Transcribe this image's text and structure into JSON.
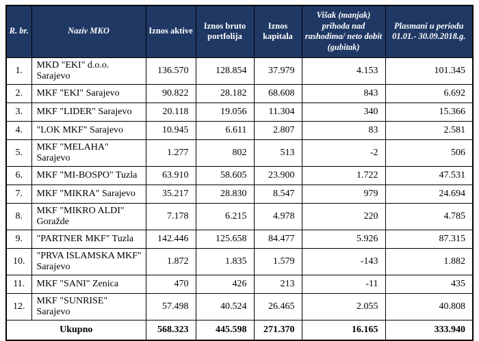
{
  "colors": {
    "header_background": "#1F3864",
    "header_text": "#FFFFFF",
    "body_text": "#000000",
    "border": "#000000"
  },
  "table": {
    "headers": [
      "R. br.",
      "Naziv MKO",
      "Iznos aktive",
      "Iznos bruto portfolija",
      "Iznos kapitala",
      "Višak (manjak) prihoda nad rashodima/ neto dobit (gubitak)",
      "Plasmani u periodu 01.01.- 30.09.2018.g."
    ],
    "rows": [
      {
        "num": "1.",
        "name": "MKD \"EKI\" d.o.o. Sarajevo",
        "aktiva": "136.570",
        "bruto": "128.854",
        "kapital": "37.979",
        "visak": "4.153",
        "plasmani": "101.345"
      },
      {
        "num": "2.",
        "name": "MKF \"EKI\" Sarajevo",
        "aktiva": "90.822",
        "bruto": "28.182",
        "kapital": "68.608",
        "visak": "843",
        "plasmani": "6.692"
      },
      {
        "num": "3.",
        "name": "MKF \"LIDER\" Sarajevo",
        "aktiva": "20.118",
        "bruto": "19.056",
        "kapital": "11.304",
        "visak": "340",
        "plasmani": "15.366"
      },
      {
        "num": "4.",
        "name": "\"LOK MKF\" Sarajevo",
        "aktiva": "10.945",
        "bruto": "6.611",
        "kapital": "2.807",
        "visak": "83",
        "plasmani": "2.581"
      },
      {
        "num": "5.",
        "name": "MKF \"MELAHA\" Sarajevo",
        "aktiva": "1.277",
        "bruto": "802",
        "kapital": "513",
        "visak": "-2",
        "plasmani": "506"
      },
      {
        "num": "6.",
        "name": "MKF \"MI-BOSPO\" Tuzla",
        "aktiva": "63.910",
        "bruto": "58.605",
        "kapital": "23.900",
        "visak": "1.722",
        "plasmani": "47.531"
      },
      {
        "num": "7.",
        "name": "MKF \"MIKRA\" Sarajevo",
        "aktiva": "35.217",
        "bruto": "28.830",
        "kapital": "8.547",
        "visak": "979",
        "plasmani": "24.694"
      },
      {
        "num": "8.",
        "name": "MKF \"MIKRO ALDI\" Goražde",
        "aktiva": "7.178",
        "bruto": "6.215",
        "kapital": "4.978",
        "visak": "220",
        "plasmani": "4.785"
      },
      {
        "num": "9.",
        "name": "\"PARTNER MKF\" Tuzla",
        "aktiva": "142.446",
        "bruto": "125.658",
        "kapital": "84.477",
        "visak": "5.926",
        "plasmani": "87.315"
      },
      {
        "num": "10.",
        "name": "\"PRVA ISLAMSKA MKF\" Sarajevo",
        "aktiva": "1.872",
        "bruto": "1.835",
        "kapital": "1.579",
        "visak": "-143",
        "plasmani": "1.882"
      },
      {
        "num": "11.",
        "name": "MKF \"SANI\" Zenica",
        "aktiva": "470",
        "bruto": "426",
        "kapital": "213",
        "visak": "-11",
        "plasmani": "435"
      },
      {
        "num": "12.",
        "name": "MKF \"SUNRISE\" Sarajevo",
        "aktiva": "57.498",
        "bruto": "40.524",
        "kapital": "26.465",
        "visak": "2.055",
        "plasmani": "40.808"
      }
    ],
    "footer": {
      "label": "Ukupno",
      "aktiva": "568.323",
      "bruto": "445.598",
      "kapital": "271.370",
      "visak": "16.165",
      "plasmani": "333.940"
    }
  }
}
